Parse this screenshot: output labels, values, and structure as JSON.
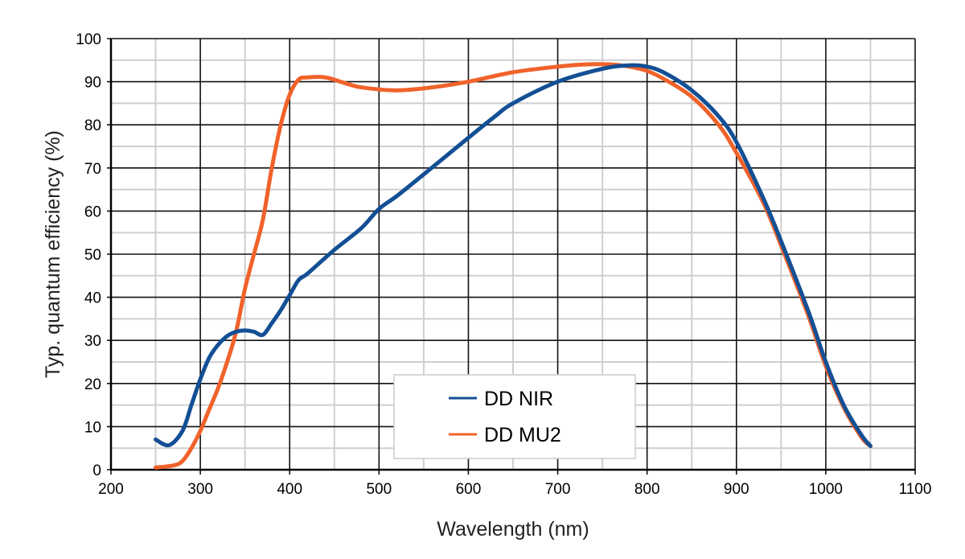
{
  "chart_data": {
    "type": "line",
    "title": "",
    "xlabel": "Wavelength (nm)",
    "ylabel": "Typ. quantum efficiency (%)",
    "xlim": [
      200,
      1100
    ],
    "ylim": [
      0,
      100
    ],
    "x_ticks": [
      "200",
      "300",
      "400",
      "500",
      "600",
      "700",
      "800",
      "900",
      "1000",
      "1100"
    ],
    "y_ticks": [
      "0",
      "10",
      "20",
      "30",
      "40",
      "50",
      "60",
      "70",
      "80",
      "90",
      "100"
    ],
    "grid": true,
    "legend_position": "bottom-center",
    "series": [
      {
        "name": "DD NIR",
        "color": "#134f94",
        "x": [
          250,
          265,
          280,
          290,
          300,
          310,
          320,
          330,
          340,
          350,
          360,
          370,
          380,
          390,
          400,
          410,
          420,
          450,
          480,
          500,
          520,
          550,
          600,
          630,
          650,
          700,
          750,
          780,
          800,
          820,
          850,
          880,
          900,
          930,
          950,
          980,
          1000,
          1020,
          1040,
          1050
        ],
        "y": [
          7,
          5.7,
          9,
          15,
          21,
          26,
          29,
          31,
          32,
          32.3,
          32,
          31.3,
          34,
          37,
          40.5,
          44,
          45.5,
          51,
          56,
          60.5,
          63.5,
          68.5,
          77,
          82,
          85,
          90,
          93,
          93.8,
          93.5,
          92,
          88,
          82,
          76,
          63,
          53,
          37,
          25,
          15,
          8,
          5.5
        ]
      },
      {
        "name": "DD MU2",
        "color": "#f0622a",
        "x": [
          250,
          270,
          280,
          290,
          300,
          310,
          320,
          330,
          340,
          350,
          360,
          370,
          380,
          390,
          400,
          410,
          420,
          440,
          460,
          480,
          520,
          560,
          600,
          650,
          700,
          730,
          760,
          780,
          800,
          820,
          850,
          880,
          900,
          930,
          950,
          980,
          1000,
          1020,
          1040,
          1050
        ],
        "y": [
          0.5,
          1,
          2,
          5,
          9,
          14,
          19,
          25,
          32,
          42,
          50,
          58,
          70,
          80,
          87,
          90.5,
          91,
          91,
          89.8,
          88.7,
          88,
          88.7,
          90,
          92.2,
          93.5,
          94,
          94,
          93.5,
          92.5,
          90.5,
          86.5,
          80,
          73.5,
          62,
          52,
          36,
          24,
          14.5,
          7.5,
          5.5
        ]
      }
    ]
  }
}
